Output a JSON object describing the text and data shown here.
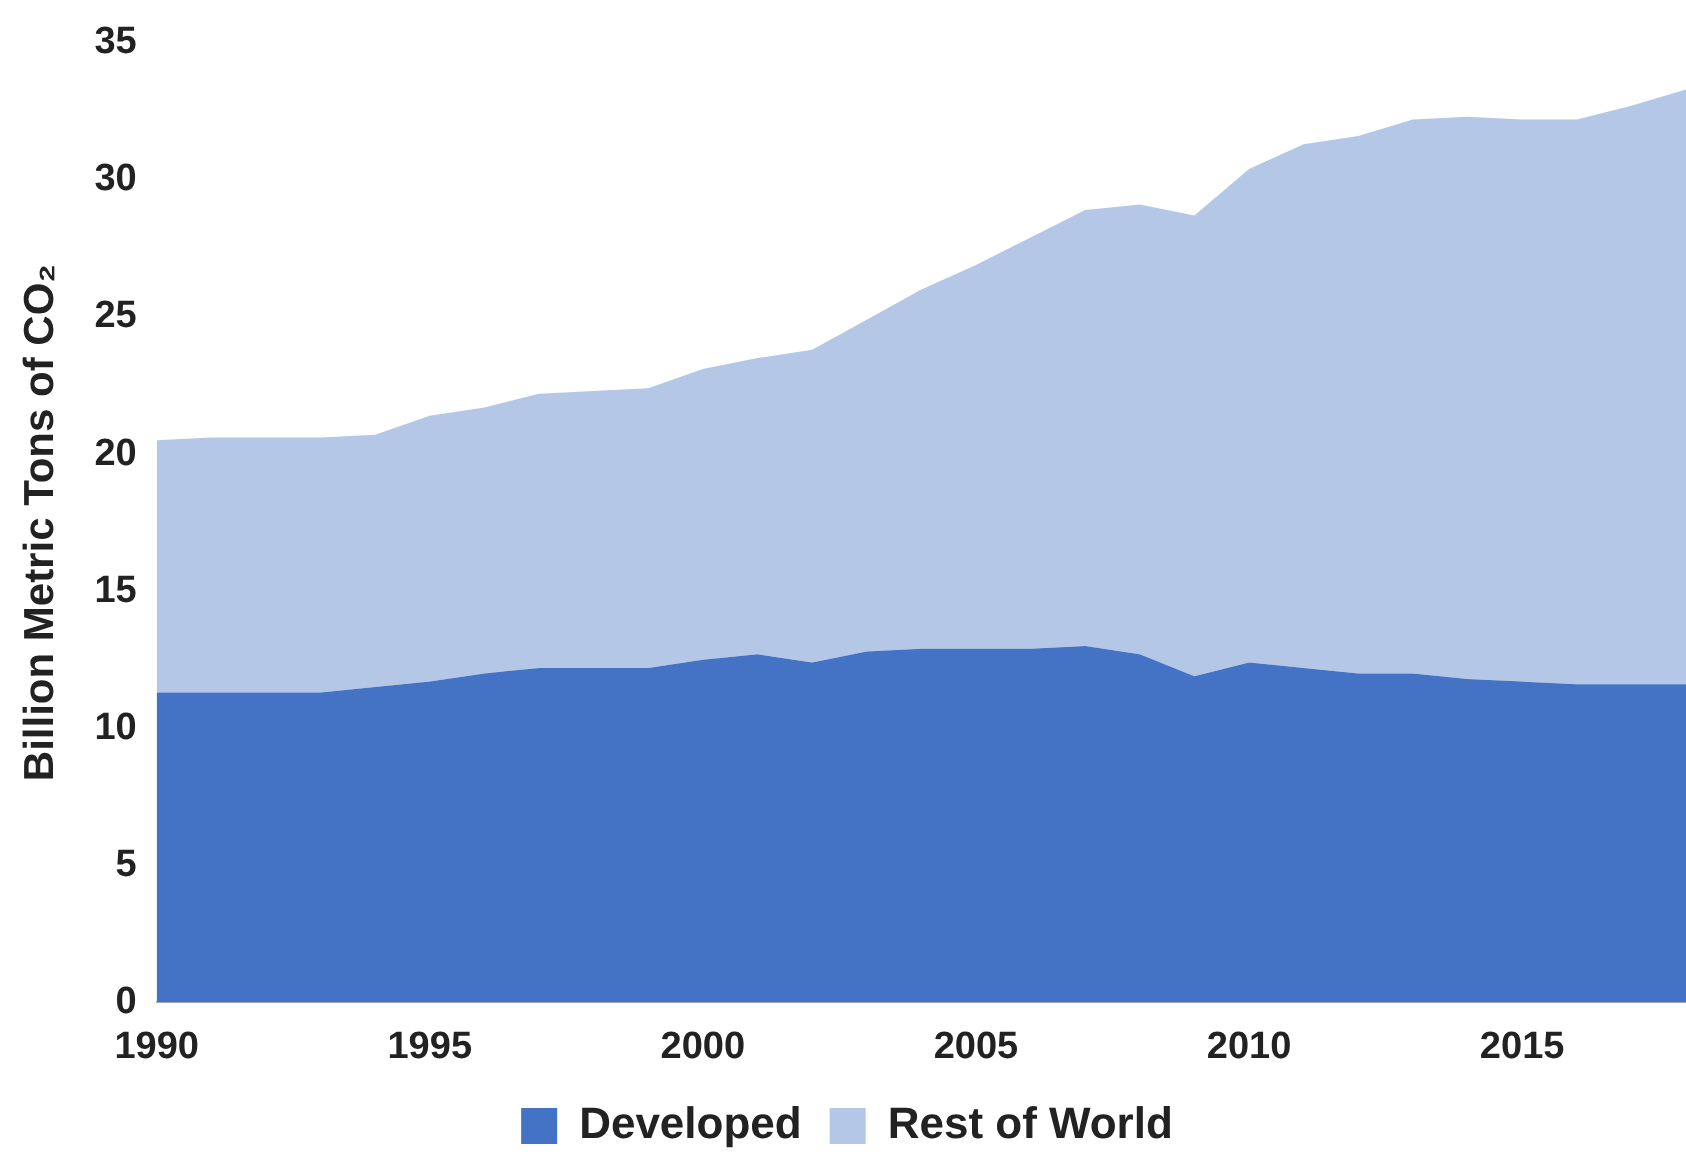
{
  "chart_data": {
    "type": "area",
    "stacked": true,
    "ylabel": "Billion Metric Tons of CO₂",
    "legend": "bottom",
    "x": [
      1990,
      1991,
      1992,
      1993,
      1994,
      1995,
      1996,
      1997,
      1998,
      1999,
      2000,
      2001,
      2002,
      2003,
      2004,
      2005,
      2006,
      2007,
      2008,
      2009,
      2010,
      2011,
      2012,
      2013,
      2014,
      2015,
      2016,
      2017,
      2018
    ],
    "xlim": [
      1990,
      2018
    ],
    "xticks": [
      1990,
      1995,
      2000,
      2005,
      2010,
      2015
    ],
    "ylim": [
      0,
      35
    ],
    "yticks": [
      0,
      5,
      10,
      15,
      20,
      25,
      30,
      35
    ],
    "series": [
      {
        "name": "Developed",
        "color": "#4472c4",
        "values": [
          11.3,
          11.3,
          11.3,
          11.3,
          11.5,
          11.7,
          12.0,
          12.2,
          12.2,
          12.2,
          12.5,
          12.7,
          12.4,
          12.8,
          12.9,
          12.9,
          12.9,
          13.0,
          12.7,
          11.9,
          12.4,
          12.2,
          12.0,
          12.0,
          11.8,
          11.7,
          11.6,
          11.6,
          11.6
        ]
      },
      {
        "name": "Rest of World",
        "color": "#b4c7e7",
        "values": [
          9.2,
          9.3,
          9.3,
          9.3,
          9.2,
          9.7,
          9.7,
          10.0,
          10.1,
          10.2,
          10.6,
          10.8,
          11.4,
          12.1,
          13.1,
          14.0,
          15.0,
          15.9,
          16.4,
          16.8,
          18.0,
          19.1,
          19.6,
          20.2,
          20.5,
          20.5,
          20.6,
          21.1,
          21.7
        ]
      }
    ]
  }
}
